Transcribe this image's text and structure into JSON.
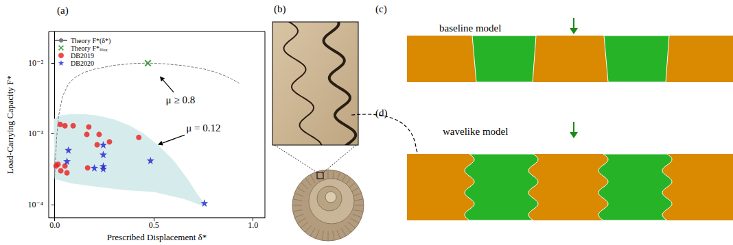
{
  "chart_data": {
    "type": "scatter",
    "title": "(a)",
    "x_label": "Prescribed Displacement δ*",
    "y_label": "Load-Carrying Capacity F*",
    "xlim": [
      -0.03,
      1.06
    ],
    "xticks": [
      {
        "value": 0,
        "label": "0.0"
      },
      {
        "value": 0.5,
        "label": "0.5"
      },
      {
        "value": 1,
        "label": "1.0"
      }
    ],
    "ylim": [
      6.5e-05,
      0.028
    ],
    "yticks": [
      {
        "value": 0.0001,
        "label": "10⁻⁴"
      },
      {
        "value": 0.001,
        "label": "10⁻³"
      },
      {
        "value": 0.01,
        "label": "10⁻²"
      }
    ],
    "log": "y",
    "grid": false,
    "legend": "upper left",
    "series": [
      {
        "name": "Theory F*(δ*)",
        "type": "line",
        "line_style": "dashed",
        "color": "#777777",
        "x": [
          0.0,
          0.01,
          0.02,
          0.04,
          0.07,
          0.1,
          0.15,
          0.2,
          0.3,
          0.4,
          0.47,
          0.55,
          0.65,
          0.75,
          0.82,
          0.87,
          0.9,
          0.93
        ],
        "values": [
          0.00025,
          0.0009,
          0.0018,
          0.0034,
          0.0051,
          0.0062,
          0.0074,
          0.0082,
          0.0093,
          0.0099,
          0.01,
          0.0098,
          0.0092,
          0.0083,
          0.0073,
          0.0064,
          0.0058,
          0.0052
        ]
      },
      {
        "name": "Theory F*ₘₐₓ",
        "type": "scatter",
        "marker": "x",
        "color": "#1e8c1e",
        "x": [
          0.47
        ],
        "values": [
          0.01
        ]
      },
      {
        "name": "DB2019",
        "type": "scatter",
        "marker": "circle",
        "color": "#ee1c1c",
        "x": [
          0.028,
          0.052,
          0.093,
          0.172,
          0.162,
          0.224,
          0.214,
          0.276,
          0.424,
          0.017,
          0.007,
          0.031,
          0.052,
          0.062,
          0.166
        ],
        "values": [
          0.00136,
          0.0013,
          0.0013,
          0.00125,
          0.00098,
          0.00098,
          0.0007,
          0.00077,
          0.00089,
          0.00037,
          0.00035,
          0.0003,
          0.00035,
          0.00028,
          0.00033
        ]
      },
      {
        "name": "DB2020",
        "type": "scatter",
        "marker": "star",
        "color": "#1f1fd6",
        "x": [
          0.069,
          0.062,
          0.245,
          0.245,
          0.2,
          0.245,
          0.245,
          0.483,
          0.755
        ],
        "values": [
          0.00059,
          0.00041,
          0.0007,
          0.00051,
          0.00033,
          0.00035,
          0.00032,
          0.00042,
          0.000105
        ]
      }
    ],
    "region": {
      "color": "#d6ecec",
      "x": [
        -0.005,
        0.02,
        0.08,
        0.15,
        0.22,
        0.3,
        0.38,
        0.45,
        0.52,
        0.6,
        0.67,
        0.72,
        0.77,
        0.65,
        0.5,
        0.35,
        0.2,
        0.08,
        0.0
      ],
      "values": [
        0.0016,
        0.0018,
        0.0019,
        0.0019,
        0.0018,
        0.0016,
        0.0013,
        0.001,
        0.0007,
        0.00042,
        0.00023,
        0.00014,
        9e-05,
        0.00012,
        0.00015,
        0.00016,
        0.00018,
        0.0002,
        0.00023
      ]
    },
    "annotations": [
      {
        "text": "μ ≥ 0.8",
        "x": 0.634,
        "y": 0.003,
        "arrow_to": [
          0.53,
          0.0065
        ]
      },
      {
        "text": "μ = 0.12",
        "x": 0.75,
        "y": 0.0012,
        "arrow_to": [
          0.52,
          0.0007
        ]
      }
    ]
  },
  "diagram": {
    "panels": [
      {
        "label": "(b)"
      },
      {
        "label": "(c)",
        "title": "baseline model"
      },
      {
        "label": "(d)",
        "title": "wavelike model"
      }
    ]
  }
}
